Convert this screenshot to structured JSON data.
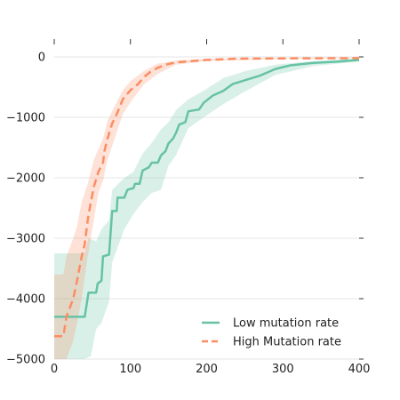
{
  "chart_data": {
    "type": "line",
    "title": "",
    "xlabel": "",
    "ylabel": "",
    "xlim": [
      0,
      400
    ],
    "ylim": [
      -5000,
      100
    ],
    "x_ticks": [
      0,
      100,
      200,
      300,
      400
    ],
    "x_tick_labels": [
      "0",
      "100",
      "200",
      "300",
      "400"
    ],
    "y_ticks": [
      0,
      -1000,
      -2000,
      -3000,
      -4000,
      -5000
    ],
    "y_tick_labels": [
      "0",
      "−1000",
      "−2000",
      "−3000",
      "−4000",
      "−5000"
    ],
    "grid": "horizontal",
    "legend_position": "bottom-right",
    "series": [
      {
        "name": "Low mutation rate",
        "color": "#66c2a5",
        "linestyle": "solid",
        "points": [
          [
            0,
            -4300
          ],
          [
            40,
            -4300
          ],
          [
            45,
            -3900
          ],
          [
            55,
            -3900
          ],
          [
            57,
            -3750
          ],
          [
            62,
            -3700
          ],
          [
            64,
            -3300
          ],
          [
            72,
            -3270
          ],
          [
            76,
            -2550
          ],
          [
            82,
            -2550
          ],
          [
            83,
            -2330
          ],
          [
            92,
            -2330
          ],
          [
            96,
            -2200
          ],
          [
            104,
            -2170
          ],
          [
            106,
            -2100
          ],
          [
            112,
            -2100
          ],
          [
            116,
            -1880
          ],
          [
            124,
            -1830
          ],
          [
            128,
            -1750
          ],
          [
            136,
            -1750
          ],
          [
            140,
            -1630
          ],
          [
            146,
            -1560
          ],
          [
            150,
            -1430
          ],
          [
            156,
            -1350
          ],
          [
            160,
            -1250
          ],
          [
            164,
            -1120
          ],
          [
            172,
            -1080
          ],
          [
            176,
            -900
          ],
          [
            190,
            -870
          ],
          [
            196,
            -760
          ],
          [
            208,
            -640
          ],
          [
            222,
            -560
          ],
          [
            234,
            -450
          ],
          [
            252,
            -380
          ],
          [
            270,
            -310
          ],
          [
            290,
            -200
          ],
          [
            310,
            -140
          ],
          [
            340,
            -100
          ],
          [
            370,
            -80
          ],
          [
            400,
            -50
          ]
        ],
        "band_upper": [
          [
            0,
            -3250
          ],
          [
            40,
            -3250
          ],
          [
            45,
            -3000
          ],
          [
            55,
            -3050
          ],
          [
            62,
            -2850
          ],
          [
            72,
            -2700
          ],
          [
            76,
            -2200
          ],
          [
            92,
            -2000
          ],
          [
            104,
            -1900
          ],
          [
            116,
            -1600
          ],
          [
            128,
            -1420
          ],
          [
            140,
            -1200
          ],
          [
            150,
            -1080
          ],
          [
            160,
            -880
          ],
          [
            176,
            -700
          ],
          [
            196,
            -560
          ],
          [
            222,
            -350
          ],
          [
            252,
            -230
          ],
          [
            290,
            -130
          ],
          [
            340,
            -70
          ],
          [
            400,
            -30
          ]
        ],
        "band_lower": [
          [
            0,
            -5000
          ],
          [
            40,
            -5000
          ],
          [
            48,
            -4950
          ],
          [
            55,
            -4500
          ],
          [
            62,
            -4400
          ],
          [
            72,
            -4050
          ],
          [
            76,
            -3400
          ],
          [
            92,
            -2850
          ],
          [
            104,
            -2600
          ],
          [
            116,
            -2400
          ],
          [
            128,
            -2250
          ],
          [
            140,
            -2200
          ],
          [
            150,
            -1800
          ],
          [
            160,
            -1620
          ],
          [
            176,
            -1180
          ],
          [
            196,
            -1000
          ],
          [
            222,
            -780
          ],
          [
            252,
            -560
          ],
          [
            290,
            -300
          ],
          [
            340,
            -150
          ],
          [
            400,
            -80
          ]
        ]
      },
      {
        "name": "High Mutation rate",
        "color": "#fc8d62",
        "linestyle": "dashed",
        "points": [
          [
            0,
            -4620
          ],
          [
            12,
            -4620
          ],
          [
            16,
            -4300
          ],
          [
            25,
            -4000
          ],
          [
            30,
            -3700
          ],
          [
            36,
            -3300
          ],
          [
            40,
            -3100
          ],
          [
            44,
            -2700
          ],
          [
            48,
            -2400
          ],
          [
            52,
            -2150
          ],
          [
            58,
            -1900
          ],
          [
            64,
            -1750
          ],
          [
            66,
            -1550
          ],
          [
            70,
            -1350
          ],
          [
            76,
            -1100
          ],
          [
            82,
            -950
          ],
          [
            90,
            -700
          ],
          [
            100,
            -550
          ],
          [
            110,
            -450
          ],
          [
            118,
            -330
          ],
          [
            126,
            -250
          ],
          [
            136,
            -180
          ],
          [
            146,
            -130
          ],
          [
            160,
            -90
          ],
          [
            180,
            -70
          ],
          [
            200,
            -50
          ],
          [
            240,
            -30
          ],
          [
            300,
            -25
          ],
          [
            400,
            -20
          ]
        ],
        "band_upper": [
          [
            0,
            -3600
          ],
          [
            12,
            -3600
          ],
          [
            16,
            -3300
          ],
          [
            25,
            -3000
          ],
          [
            30,
            -2800
          ],
          [
            36,
            -2400
          ],
          [
            44,
            -2100
          ],
          [
            52,
            -1700
          ],
          [
            64,
            -1350
          ],
          [
            70,
            -1050
          ],
          [
            82,
            -750
          ],
          [
            90,
            -550
          ],
          [
            100,
            -400
          ],
          [
            118,
            -230
          ],
          [
            136,
            -110
          ],
          [
            160,
            -60
          ],
          [
            200,
            -30
          ],
          [
            300,
            -15
          ],
          [
            400,
            -10
          ]
        ],
        "band_lower": [
          [
            0,
            -5000
          ],
          [
            12,
            -5000
          ],
          [
            16,
            -5000
          ],
          [
            25,
            -4700
          ],
          [
            30,
            -4400
          ],
          [
            36,
            -4000
          ],
          [
            44,
            -3300
          ],
          [
            52,
            -2700
          ],
          [
            58,
            -2250
          ],
          [
            64,
            -2050
          ],
          [
            70,
            -1700
          ],
          [
            82,
            -1250
          ],
          [
            90,
            -950
          ],
          [
            100,
            -750
          ],
          [
            118,
            -450
          ],
          [
            136,
            -280
          ],
          [
            160,
            -130
          ],
          [
            200,
            -70
          ],
          [
            300,
            -35
          ],
          [
            400,
            -30
          ]
        ]
      }
    ]
  }
}
